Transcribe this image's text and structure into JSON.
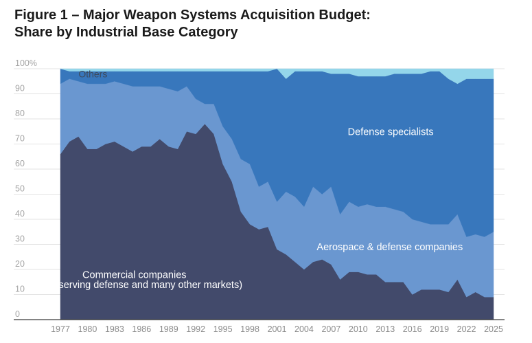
{
  "chart_data": {
    "type": "area",
    "stacked": true,
    "title": "Figure 1 – Major Weapon Systems Acquisition Budget:",
    "subtitle": "Share by Industrial Base Category",
    "xlabel": "",
    "ylabel": "",
    "ylim": [
      0,
      100
    ],
    "xlim": [
      1977,
      2025
    ],
    "y_ticks": [
      {
        "value": 100,
        "label": "100%"
      },
      {
        "value": 90,
        "label": "90"
      },
      {
        "value": 80,
        "label": "80"
      },
      {
        "value": 70,
        "label": "70"
      },
      {
        "value": 60,
        "label": "60"
      },
      {
        "value": 50,
        "label": "50"
      },
      {
        "value": 40,
        "label": "40"
      },
      {
        "value": 30,
        "label": "30"
      },
      {
        "value": 20,
        "label": "20"
      },
      {
        "value": 10,
        "label": "10"
      },
      {
        "value": 0,
        "label": "0"
      }
    ],
    "x_ticks": [
      "1977",
      "1980",
      "1983",
      "1986",
      "1989",
      "1992",
      "1995",
      "1998",
      "2001",
      "2004",
      "2007",
      "2010",
      "2013",
      "2016",
      "2019",
      "2022",
      "2025"
    ],
    "grid": true,
    "x": [
      1977,
      1978,
      1979,
      1980,
      1981,
      1982,
      1983,
      1984,
      1985,
      1986,
      1987,
      1988,
      1989,
      1990,
      1991,
      1992,
      1993,
      1994,
      1995,
      1996,
      1997,
      1998,
      1999,
      2000,
      2001,
      2002,
      2003,
      2004,
      2005,
      2006,
      2007,
      2008,
      2009,
      2010,
      2011,
      2012,
      2013,
      2014,
      2015,
      2016,
      2017,
      2018,
      2019,
      2020,
      2021,
      2022,
      2023,
      2024,
      2025
    ],
    "series": [
      {
        "name": "Commercial companies",
        "color": "#424a6b",
        "values": [
          66,
          71,
          73,
          68,
          68,
          70,
          71,
          69,
          67,
          69,
          69,
          72,
          69,
          68,
          75,
          74,
          78,
          74,
          62,
          55,
          43,
          38,
          36,
          37,
          28,
          26,
          23,
          20,
          23,
          24,
          22,
          16,
          19,
          19,
          18,
          18,
          15,
          15,
          15,
          10,
          12,
          12,
          12,
          11,
          16,
          9,
          11,
          9,
          9
        ]
      },
      {
        "name": "Aerospace & defense companies",
        "color": "#6a97d0",
        "values": [
          28,
          25,
          22,
          26,
          26,
          24,
          24,
          25,
          26,
          24,
          24,
          21,
          23,
          23,
          18,
          14,
          8,
          12,
          15,
          17,
          21,
          24,
          17,
          18,
          19,
          25,
          26,
          25,
          30,
          26,
          31,
          26,
          28,
          26,
          28,
          27,
          30,
          29,
          28,
          30,
          27,
          26,
          26,
          27,
          26,
          24,
          23,
          24,
          26
        ]
      },
      {
        "name": "Defense specialists",
        "color": "#3877bc",
        "values": [
          6,
          3,
          4,
          5,
          5,
          5,
          4,
          5,
          6,
          6,
          6,
          6,
          7,
          8,
          6,
          11,
          13,
          13,
          22,
          27,
          35,
          37,
          46,
          44,
          53,
          45,
          50,
          54,
          46,
          49,
          45,
          56,
          51,
          52,
          51,
          52,
          52,
          54,
          55,
          58,
          59,
          61,
          61,
          58,
          52,
          63,
          62,
          63,
          61
        ]
      },
      {
        "name": "Others",
        "color": "#94d6ea",
        "values": [
          0,
          1,
          1,
          1,
          1,
          1,
          1,
          1,
          1,
          1,
          1,
          1,
          1,
          1,
          1,
          1,
          1,
          1,
          1,
          1,
          1,
          1,
          1,
          1,
          0,
          4,
          1,
          1,
          1,
          1,
          2,
          2,
          2,
          3,
          3,
          3,
          3,
          2,
          2,
          2,
          2,
          1,
          1,
          4,
          6,
          4,
          4,
          4,
          4
        ]
      }
    ],
    "annotations": [
      {
        "text": "Others",
        "x": 1980.6,
        "y": 98
      },
      {
        "text": "Defense specialists",
        "x": 2013.6,
        "y": 75
      },
      {
        "text": "Aerospace & defense companies",
        "x": 2013.5,
        "y": 29
      },
      {
        "text": "Commercial companies",
        "x": 1985.2,
        "y": 18
      },
      {
        "text": "(serving defense and many other markets)",
        "x": 1986.8,
        "y": 14
      }
    ]
  }
}
